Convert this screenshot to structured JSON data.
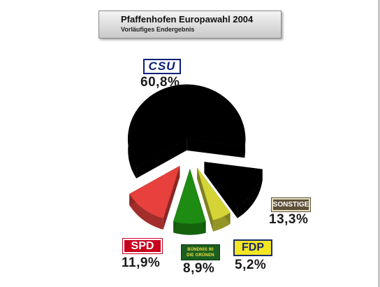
{
  "header": {
    "title": "Pfaffenhofen Europawahl 2004",
    "subtitle": "Vorläufiges Endergebnis"
  },
  "chart_data": {
    "type": "pie",
    "categories": [
      "CSU",
      "SONSTIGE",
      "FDP",
      "GRÜNE",
      "SPD"
    ],
    "values": [
      60.8,
      13.3,
      5.2,
      8.9,
      11.9
    ],
    "labels": [
      "60,8%",
      "13,3%",
      "5,2%",
      "8,9%",
      "11,9%"
    ],
    "colors": [
      "#000000",
      "#000000",
      "#d4d437",
      "#1e8c12",
      "#e8403c"
    ],
    "exploded": true,
    "three_d": true
  },
  "legend": {
    "csu": "CSU",
    "sonstige": "SONSTIGE",
    "spd": "SPD",
    "gruene_line1": "BÜNDNIS 90",
    "gruene_line2": "DIE GRÜNEN",
    "fdp": "FDP"
  }
}
